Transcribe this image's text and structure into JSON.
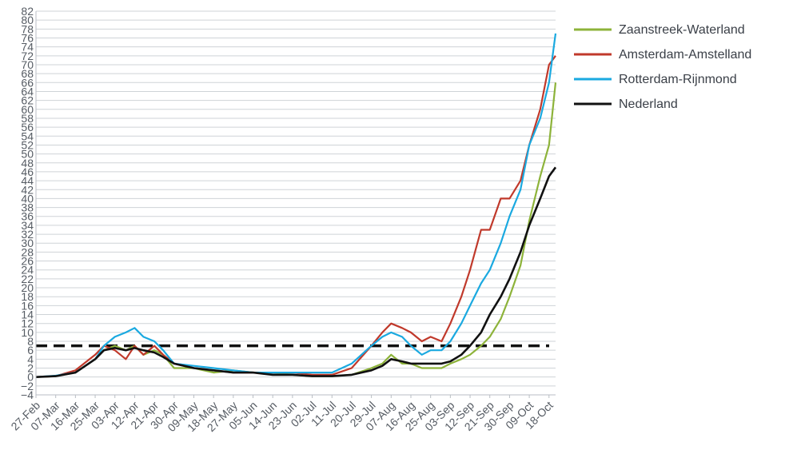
{
  "chart_data": {
    "type": "line",
    "title": "",
    "xlabel": "",
    "ylabel": "",
    "ylim": [
      -4,
      82
    ],
    "y_ticks": [
      -4,
      -2,
      0,
      2,
      4,
      6,
      8,
      10,
      12,
      14,
      16,
      18,
      20,
      22,
      24,
      26,
      28,
      30,
      32,
      34,
      36,
      38,
      40,
      42,
      44,
      46,
      48,
      50,
      52,
      54,
      56,
      58,
      60,
      62,
      64,
      66,
      68,
      70,
      72,
      74,
      76,
      78,
      80,
      82
    ],
    "x_tick_labels": [
      "27-Feb",
      "07-Mar",
      "16-Mar",
      "25-Mar",
      "03-Apr",
      "12-Apr",
      "21-Apr",
      "30-Apr",
      "09-May",
      "18-May",
      "27-May",
      "05-Jun",
      "14-Jun",
      "23-Jun",
      "02-Jul",
      "11-Jul",
      "20-Jul",
      "29-Jul",
      "07-Aug",
      "16-Aug",
      "25-Aug",
      "03-Sep",
      "12-Sep",
      "21-Sep",
      "30-Sep",
      "09-Oct",
      "18-Oct"
    ],
    "grid": "horizontal",
    "legend_position": "top-right",
    "reference_line": {
      "y": 7,
      "style": "dashed",
      "color": "#111111"
    },
    "x": [
      "27-Feb",
      "07-Mar",
      "16-Mar",
      "25-Mar",
      "29-Mar",
      "03-Apr",
      "08-Apr",
      "12-Apr",
      "16-Apr",
      "21-Apr",
      "25-Apr",
      "30-Apr",
      "09-May",
      "18-May",
      "27-May",
      "05-Jun",
      "14-Jun",
      "23-Jun",
      "02-Jul",
      "11-Jul",
      "20-Jul",
      "29-Jul",
      "03-Aug",
      "07-Aug",
      "12-Aug",
      "16-Aug",
      "21-Aug",
      "25-Aug",
      "30-Aug",
      "03-Sep",
      "08-Sep",
      "12-Sep",
      "17-Sep",
      "21-Sep",
      "26-Sep",
      "30-Sep",
      "05-Oct",
      "09-Oct",
      "14-Oct",
      "18-Oct",
      "21-Oct"
    ],
    "series": [
      {
        "name": "Zaanstreek-Waterland",
        "color": "#8db33a",
        "values": [
          0,
          0.2,
          1,
          4,
          6,
          7,
          6,
          7,
          5,
          6,
          5,
          2,
          2,
          1,
          1.5,
          1,
          1,
          0.5,
          0.2,
          0.2,
          0.5,
          2,
          3,
          5,
          3,
          3,
          2,
          2,
          2,
          3,
          4,
          5,
          7,
          9,
          13,
          18,
          25,
          35,
          45,
          52,
          66
        ]
      },
      {
        "name": "Amsterdam-Amstelland",
        "color": "#c0392b",
        "values": [
          0,
          0.2,
          1.5,
          5,
          7,
          6,
          4,
          7,
          5,
          7,
          5,
          3,
          2,
          1.5,
          1,
          1,
          1,
          1,
          0.5,
          0.5,
          2,
          7,
          10,
          12,
          11,
          10,
          8,
          9,
          8,
          12,
          18,
          24,
          33,
          33,
          40,
          40,
          44,
          52,
          60,
          70,
          72
        ]
      },
      {
        "name": "Rotterdam-Rijnmond",
        "color": "#1aa9e0",
        "values": [
          0,
          0.3,
          1,
          4,
          7,
          9,
          10,
          11,
          9,
          8,
          6,
          3,
          2.5,
          2,
          1.5,
          1,
          1,
          1,
          1,
          1,
          3,
          7,
          9,
          10,
          9,
          7,
          5,
          6,
          6,
          8,
          12,
          16,
          21,
          24,
          30,
          36,
          42,
          52,
          58,
          66,
          77
        ]
      },
      {
        "name": "Nederland",
        "color": "#111111",
        "values": [
          0,
          0.2,
          1,
          4,
          6,
          6.5,
          6,
          6.5,
          6,
          5.5,
          4.5,
          3,
          2,
          1.5,
          1,
          1,
          0.5,
          0.5,
          0.2,
          0.2,
          0.5,
          1.5,
          2.5,
          4,
          3.5,
          3,
          3,
          3,
          3,
          3.5,
          5,
          7,
          10,
          14,
          18,
          22,
          28,
          34,
          40,
          45,
          47
        ]
      }
    ]
  }
}
